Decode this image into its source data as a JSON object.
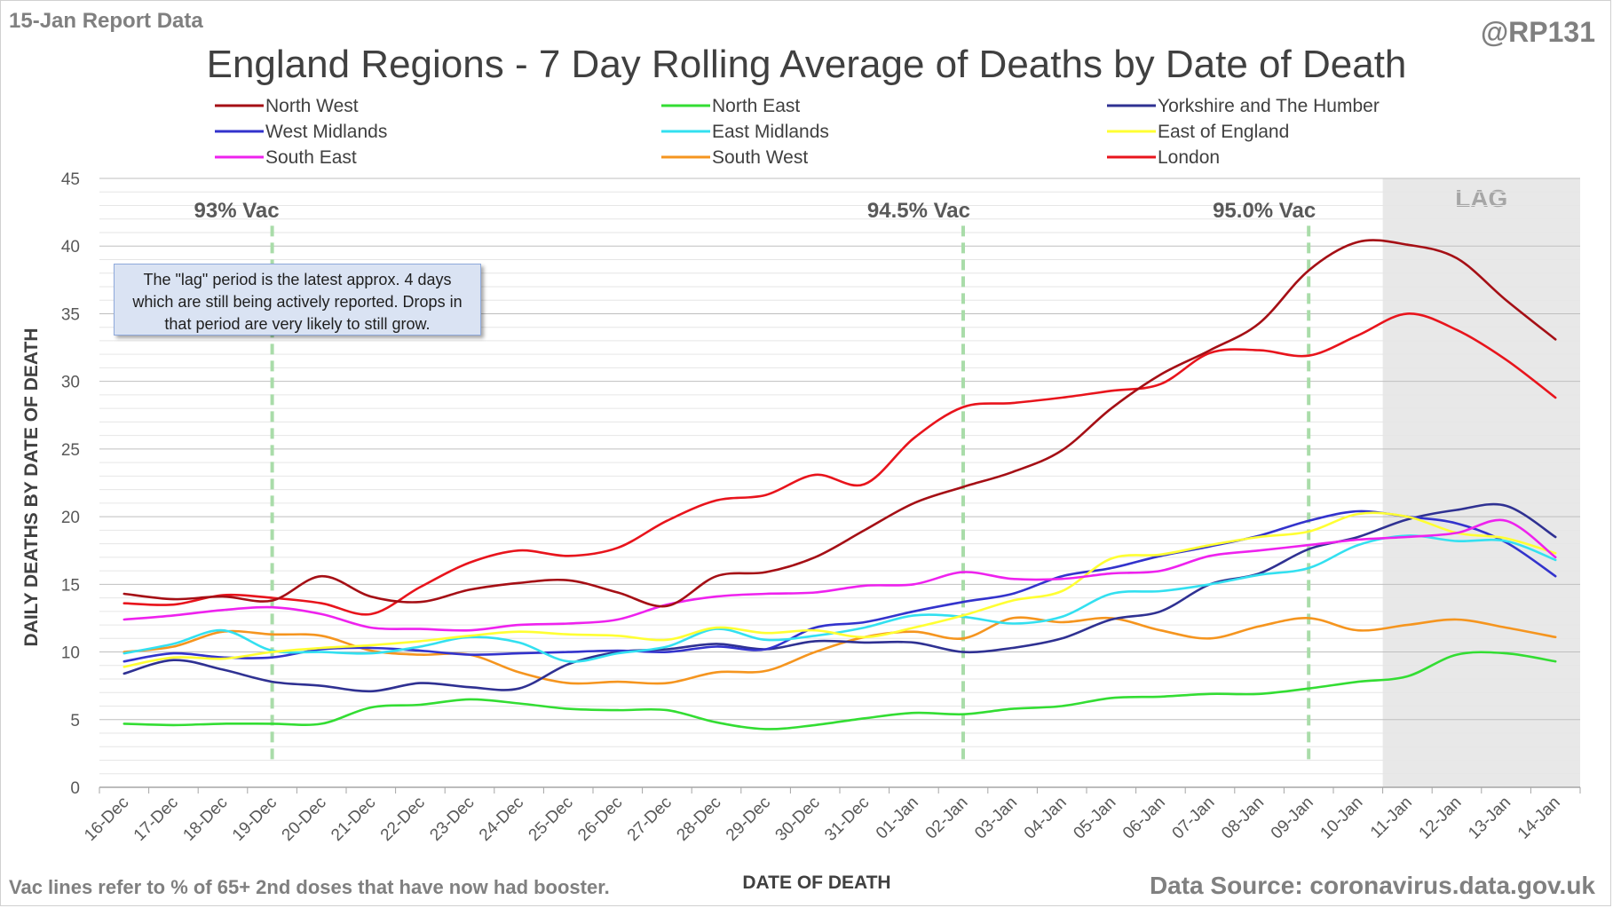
{
  "header": {
    "report_label": "15-Jan Report Data",
    "handle": "@RP131",
    "footnote": "Vac lines refer to % of 65+ 2nd doses that have now had booster.",
    "source": "Data Source: coronavirus.data.gov.uk"
  },
  "note_box": {
    "text": "The \"lag\" period is the latest approx. 4 days which are still being actively reported.  Drops in that period are very likely to still grow."
  },
  "chart_data": {
    "type": "line",
    "title": "England Regions - 7 Day Rolling Average of Deaths by Date of Death",
    "xlabel": "DATE OF DEATH",
    "ylabel": "DAILY DEATHS BY DATE OF DEATH",
    "ylim": [
      0,
      45
    ],
    "yticks": [
      0,
      5,
      10,
      15,
      20,
      25,
      30,
      35,
      40,
      45
    ],
    "grid": true,
    "legend_position": "top",
    "categories": [
      "16-Dec",
      "17-Dec",
      "18-Dec",
      "19-Dec",
      "20-Dec",
      "21-Dec",
      "22-Dec",
      "23-Dec",
      "24-Dec",
      "25-Dec",
      "26-Dec",
      "27-Dec",
      "28-Dec",
      "29-Dec",
      "30-Dec",
      "31-Dec",
      "01-Jan",
      "02-Jan",
      "03-Jan",
      "04-Jan",
      "05-Jan",
      "06-Jan",
      "07-Jan",
      "08-Jan",
      "09-Jan",
      "10-Jan",
      "11-Jan",
      "12-Jan",
      "13-Jan",
      "14-Jan"
    ],
    "series": [
      {
        "name": "North West",
        "color": "#a50f15",
        "values": [
          14.3,
          13.9,
          14.1,
          13.8,
          15.6,
          14.1,
          13.7,
          14.6,
          15.1,
          15.3,
          14.4,
          13.4,
          15.6,
          15.9,
          17.0,
          19.0,
          21.0,
          22.2,
          23.3,
          24.9,
          28.0,
          30.5,
          32.3,
          34.3,
          38.2,
          40.3,
          40.1,
          39.1,
          36.0,
          33.1
        ]
      },
      {
        "name": "North East",
        "color": "#33dd33",
        "values": [
          4.7,
          4.6,
          4.7,
          4.7,
          4.7,
          5.9,
          6.1,
          6.5,
          6.2,
          5.8,
          5.7,
          5.7,
          4.8,
          4.3,
          4.6,
          5.1,
          5.5,
          5.4,
          5.8,
          6.0,
          6.6,
          6.7,
          6.9,
          6.9,
          7.3,
          7.8,
          8.2,
          9.8,
          9.9,
          9.3
        ]
      },
      {
        "name": "Yorkshire and The Humber",
        "color": "#2f3192",
        "values": [
          8.4,
          9.4,
          8.7,
          7.8,
          7.5,
          7.1,
          7.7,
          7.4,
          7.3,
          9.1,
          10.0,
          10.2,
          10.6,
          10.2,
          10.8,
          10.7,
          10.7,
          10.0,
          10.3,
          11.0,
          12.4,
          13.0,
          15.0,
          15.8,
          17.6,
          18.5,
          19.8,
          20.5,
          20.8,
          18.5
        ]
      },
      {
        "name": "West Midlands",
        "color": "#3333cc",
        "values": [
          9.3,
          9.9,
          9.6,
          9.6,
          10.2,
          10.3,
          10.1,
          9.8,
          9.9,
          10.0,
          10.1,
          10.0,
          10.4,
          10.2,
          11.8,
          12.2,
          13.0,
          13.7,
          14.3,
          15.6,
          16.2,
          17.1,
          17.8,
          18.6,
          19.7,
          20.4,
          20.0,
          19.5,
          18.1,
          15.6
        ]
      },
      {
        "name": "East Midlands",
        "color": "#33e0f0",
        "values": [
          9.9,
          10.6,
          11.6,
          10.1,
          10.0,
          9.9,
          10.4,
          11.1,
          10.7,
          9.3,
          9.9,
          10.4,
          11.7,
          10.9,
          11.2,
          11.8,
          12.7,
          12.6,
          12.1,
          12.6,
          14.3,
          14.5,
          15.0,
          15.7,
          16.2,
          17.9,
          18.6,
          18.2,
          18.2,
          16.8
        ]
      },
      {
        "name": "East of England",
        "color": "#ffff33",
        "values": [
          8.9,
          9.6,
          9.5,
          10.0,
          10.3,
          10.5,
          10.8,
          11.2,
          11.5,
          11.3,
          11.2,
          10.9,
          11.8,
          11.4,
          11.6,
          11.1,
          11.8,
          12.7,
          13.8,
          14.5,
          16.9,
          17.2,
          17.9,
          18.5,
          18.9,
          20.2,
          20.0,
          18.8,
          18.4,
          17.3
        ]
      },
      {
        "name": "South East",
        "color": "#ee22ee",
        "values": [
          12.4,
          12.7,
          13.1,
          13.3,
          12.8,
          11.8,
          11.7,
          11.6,
          12.0,
          12.1,
          12.4,
          13.5,
          14.1,
          14.3,
          14.4,
          14.9,
          15.0,
          15.9,
          15.4,
          15.4,
          15.8,
          16.0,
          17.1,
          17.5,
          17.9,
          18.3,
          18.5,
          18.8,
          19.7,
          17.0
        ]
      },
      {
        "name": "South West",
        "color": "#f5951f",
        "values": [
          10.0,
          10.4,
          11.5,
          11.3,
          11.2,
          10.1,
          9.8,
          9.8,
          8.5,
          7.7,
          7.8,
          7.7,
          8.5,
          8.6,
          10.0,
          11.1,
          11.5,
          11.0,
          12.5,
          12.2,
          12.5,
          11.6,
          11.0,
          11.9,
          12.5,
          11.6,
          12.0,
          12.4,
          11.8,
          11.1
        ]
      },
      {
        "name": "London",
        "color": "#e8141c",
        "values": [
          13.6,
          13.5,
          14.2,
          14.0,
          13.6,
          12.8,
          14.8,
          16.6,
          17.5,
          17.1,
          17.7,
          19.7,
          21.2,
          21.6,
          23.1,
          22.4,
          25.8,
          28.1,
          28.4,
          28.8,
          29.3,
          29.8,
          32.1,
          32.3,
          31.9,
          33.4,
          35.0,
          33.8,
          31.6,
          28.8
        ]
      }
    ],
    "vac_lines": [
      {
        "label": "93% Vac",
        "x": "19-Dec"
      },
      {
        "label": "94.5% Vac",
        "x": "02-Jan"
      },
      {
        "label": "95.0% Vac",
        "x": "09-Jan"
      }
    ],
    "lag_region": {
      "label": "LAG",
      "from": "11-Jan",
      "to": "14-Jan"
    }
  }
}
